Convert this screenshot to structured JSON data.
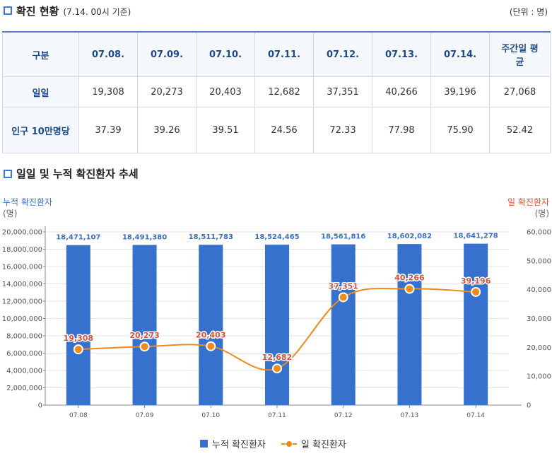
{
  "section1": {
    "title": "확진 현황",
    "subtitle": "(7.14. 00시 기준)",
    "unit": "(단위 : 명)"
  },
  "table": {
    "headers": [
      "구분",
      "07.08.",
      "07.09.",
      "07.10.",
      "07.11.",
      "07.12.",
      "07.13.",
      "07.14.",
      "주간일 평균"
    ],
    "rows": [
      {
        "label": "일일",
        "values": [
          "19,308",
          "20,273",
          "20,403",
          "12,682",
          "37,351",
          "40,266",
          "39,196",
          "27,068"
        ]
      },
      {
        "label": "인구 10만명당",
        "values": [
          "37.39",
          "39.26",
          "39.51",
          "24.56",
          "72.33",
          "77.98",
          "75.90",
          "52.42"
        ]
      }
    ]
  },
  "section2": {
    "title": "일일 및 누적 확진환자 추세"
  },
  "axes": {
    "left_title": "누적 확진환자",
    "left_unit": "(명)",
    "right_title": "일 확진환자",
    "right_unit": "(명)"
  },
  "legend": {
    "bar": "누적 확진환자",
    "line": "일 확진환자"
  },
  "colors": {
    "bar": "#3571cd",
    "line": "#f08a1c",
    "bar_label": "#3a6fc4",
    "line_label": "#d0533b",
    "accent": "#3a7bd5"
  },
  "chart_data": {
    "type": "bar",
    "categories": [
      "07.08",
      "07.09",
      "07.10",
      "07.11",
      "07.12",
      "07.13",
      "07.14"
    ],
    "series": [
      {
        "name": "누적 확진환자",
        "type": "bar",
        "axis": "left",
        "values": [
          18471107,
          18491380,
          18511783,
          18524465,
          18561816,
          18602082,
          18641278
        ],
        "labels": [
          "18,471,107",
          "18,491,380",
          "18,511,783",
          "18,524,465",
          "18,561,816",
          "18,602,082",
          "18,641,278"
        ]
      },
      {
        "name": "일 확진환자",
        "type": "line",
        "axis": "right",
        "values": [
          19308,
          20273,
          20403,
          12682,
          37351,
          40266,
          39196
        ],
        "labels": [
          "19,308",
          "20,273",
          "20,403",
          "12,682",
          "37,351",
          "40,266",
          "39,196"
        ]
      }
    ],
    "y_left": {
      "range": [
        0,
        20000000
      ],
      "ticks": [
        0,
        2000000,
        4000000,
        6000000,
        8000000,
        10000000,
        12000000,
        14000000,
        16000000,
        18000000,
        20000000
      ],
      "tick_labels": [
        "0",
        "2,000,000",
        "4,000,000",
        "6,000,000",
        "8,000,000",
        "10,000,000",
        "12,000,000",
        "14,000,000",
        "16,000,000",
        "18,000,000",
        "20,000,000"
      ]
    },
    "y_right": {
      "range": [
        0,
        60000
      ],
      "ticks": [
        0,
        10000,
        20000,
        30000,
        40000,
        50000,
        60000
      ],
      "tick_labels": [
        "0",
        "10,000",
        "20,000",
        "30,000",
        "40,000",
        "50,000",
        "60,000"
      ]
    },
    "grid": true,
    "legend_position": "bottom"
  }
}
